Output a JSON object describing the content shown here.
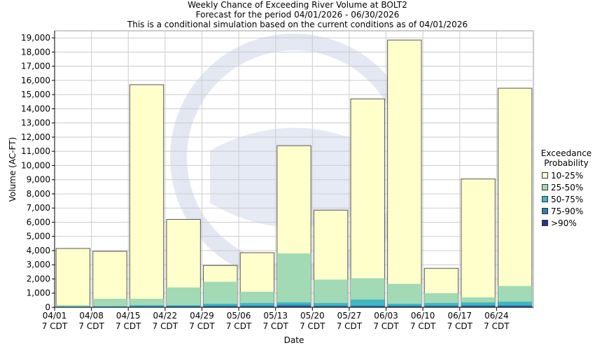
{
  "chart_data": {
    "type": "bar",
    "title": "Weekly Chance of Exceeding River Volume at BOLT2",
    "subtitle1": "Forecast for the period 04/01/2026 - 06/30/2026",
    "subtitle2": "This is a conditional simulation based on the current conditions as of 04/01/2026",
    "xlabel": "Date",
    "ylabel": "Volume (AC-FT)",
    "ylim": [
      0,
      19500
    ],
    "yticks": [
      0,
      1000,
      2000,
      3000,
      4000,
      5000,
      6000,
      7000,
      8000,
      9000,
      10000,
      11000,
      12000,
      13000,
      14000,
      15000,
      16000,
      17000,
      18000,
      19000
    ],
    "ytick_labels": [
      "0",
      "1,000",
      "2,000",
      "3,000",
      "4,000",
      "5,000",
      "6,000",
      "7,000",
      "8,000",
      "9,000",
      "10,000",
      "11,000",
      "12,000",
      "13,000",
      "14,000",
      "15,000",
      "16,000",
      "17,000",
      "18,000",
      "19,000"
    ],
    "categories": [
      "04/01",
      "04/08",
      "04/15",
      "04/22",
      "04/29",
      "05/06",
      "05/13",
      "05/20",
      "05/27",
      "06/03",
      "06/10",
      "06/17",
      "06/24"
    ],
    "category_sublabel": "7 CDT",
    "grid": true,
    "legend_title_1": "Exceedance",
    "legend_title_2": "Probability",
    "series": [
      {
        "name": "10-25%",
        "color": "#ffffcc",
        "values": [
          4150,
          3950,
          15700,
          6200,
          2950,
          3850,
          11400,
          6850,
          14700,
          18850,
          2750,
          9050,
          15450
        ]
      },
      {
        "name": "25-50%",
        "color": "#a1dab4",
        "values": [
          150,
          600,
          600,
          1400,
          1800,
          1100,
          3800,
          1950,
          2050,
          1650,
          1000,
          700,
          1500
        ]
      },
      {
        "name": "50-75%",
        "color": "#41b6c4",
        "values": [
          60,
          80,
          150,
          150,
          250,
          300,
          350,
          300,
          550,
          250,
          300,
          350,
          400
        ]
      },
      {
        "name": "75-90%",
        "color": "#2c7fb8",
        "values": [
          30,
          40,
          70,
          80,
          120,
          120,
          180,
          120,
          120,
          120,
          120,
          150,
          150
        ]
      },
      {
        "name": ">90%",
        "color": "#253494",
        "values": [
          10,
          15,
          25,
          30,
          40,
          40,
          60,
          40,
          40,
          40,
          40,
          50,
          50
        ]
      }
    ]
  }
}
